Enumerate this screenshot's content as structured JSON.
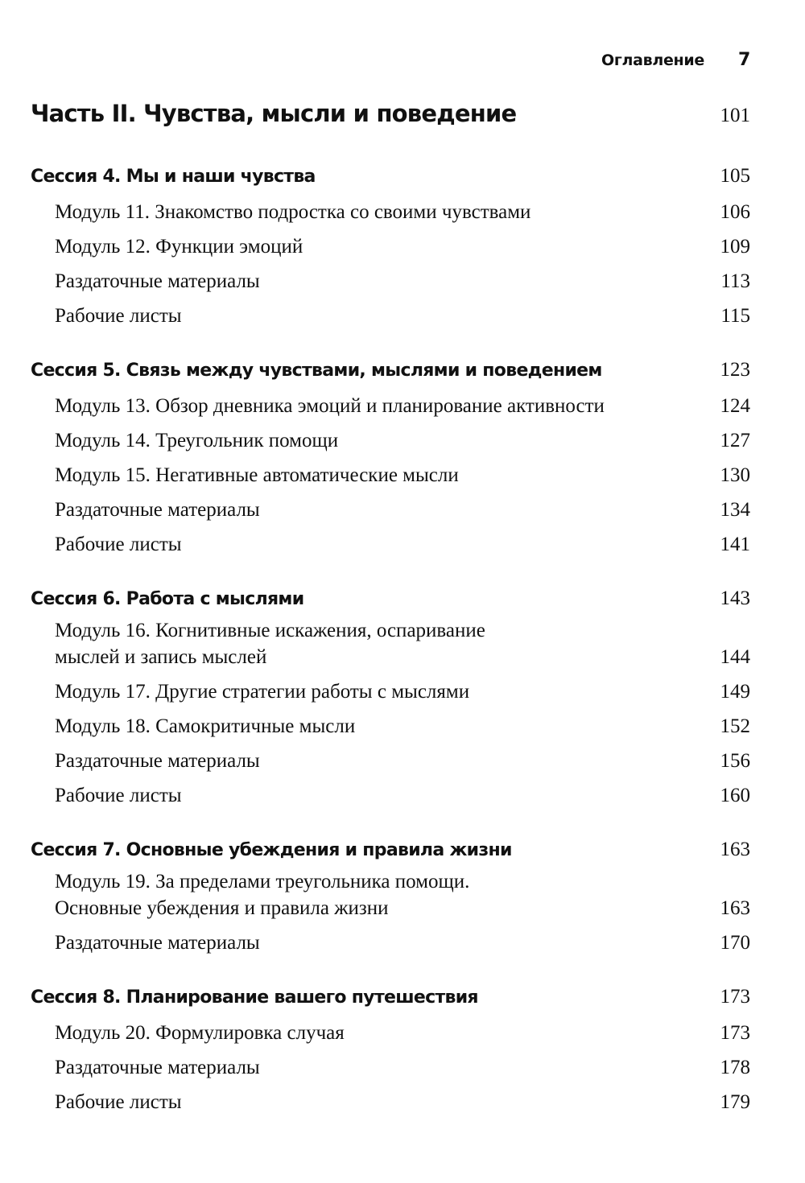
{
  "header": {
    "title": "Оглавление",
    "page": "7"
  },
  "part": {
    "title": "Часть II. Чувства, мысли и поведение",
    "page": "101"
  },
  "sessions": [
    {
      "title": "Сессия 4. Мы и наши чувства",
      "page": "105",
      "items": [
        {
          "lines": [
            "Модуль 11. Знакомство подростка со своими чувствами"
          ],
          "page": "106"
        },
        {
          "lines": [
            "Модуль 12. Функции эмоций"
          ],
          "page": "109"
        },
        {
          "lines": [
            "Раздаточные материалы"
          ],
          "page": "113"
        },
        {
          "lines": [
            "Рабочие листы"
          ],
          "page": "115"
        }
      ]
    },
    {
      "title": "Сессия 5. Связь между чувствами, мыслями и поведением",
      "page": "123",
      "items": [
        {
          "lines": [
            "Модуль 13. Обзор дневника эмоций и планирование активности"
          ],
          "page": "124"
        },
        {
          "lines": [
            "Модуль 14. Треугольник помощи"
          ],
          "page": "127"
        },
        {
          "lines": [
            "Модуль 15. Негативные автоматические мысли"
          ],
          "page": "130"
        },
        {
          "lines": [
            "Раздаточные материалы"
          ],
          "page": "134"
        },
        {
          "lines": [
            "Рабочие листы"
          ],
          "page": "141"
        }
      ]
    },
    {
      "title": "Сессия 6. Работа с мыслями",
      "page": "143",
      "items": [
        {
          "lines": [
            "Модуль 16. Когнитивные искажения, оспаривание",
            "мыслей и запись мыслей"
          ],
          "page": "144"
        },
        {
          "lines": [
            "Модуль 17. Другие стратегии работы с мыслями"
          ],
          "page": "149"
        },
        {
          "lines": [
            "Модуль 18. Самокритичные мысли"
          ],
          "page": "152"
        },
        {
          "lines": [
            "Раздаточные материалы"
          ],
          "page": "156"
        },
        {
          "lines": [
            "Рабочие листы"
          ],
          "page": "160"
        }
      ]
    },
    {
      "title": "Сессия 7. Основные убеждения и правила жизни",
      "page": "163",
      "items": [
        {
          "lines": [
            "Модуль 19. За пределами треугольника помощи.",
            "Основные убеждения и правила жизни"
          ],
          "page": "163"
        },
        {
          "lines": [
            "Раздаточные материалы"
          ],
          "page": "170"
        }
      ]
    },
    {
      "title": "Сессия 8. Планирование вашего путешествия",
      "page": "173",
      "items": [
        {
          "lines": [
            "Модуль 20. Формулировка случая"
          ],
          "page": "173"
        },
        {
          "lines": [
            "Раздаточные материалы"
          ],
          "page": "178"
        },
        {
          "lines": [
            "Рабочие листы"
          ],
          "page": "179"
        }
      ]
    }
  ]
}
